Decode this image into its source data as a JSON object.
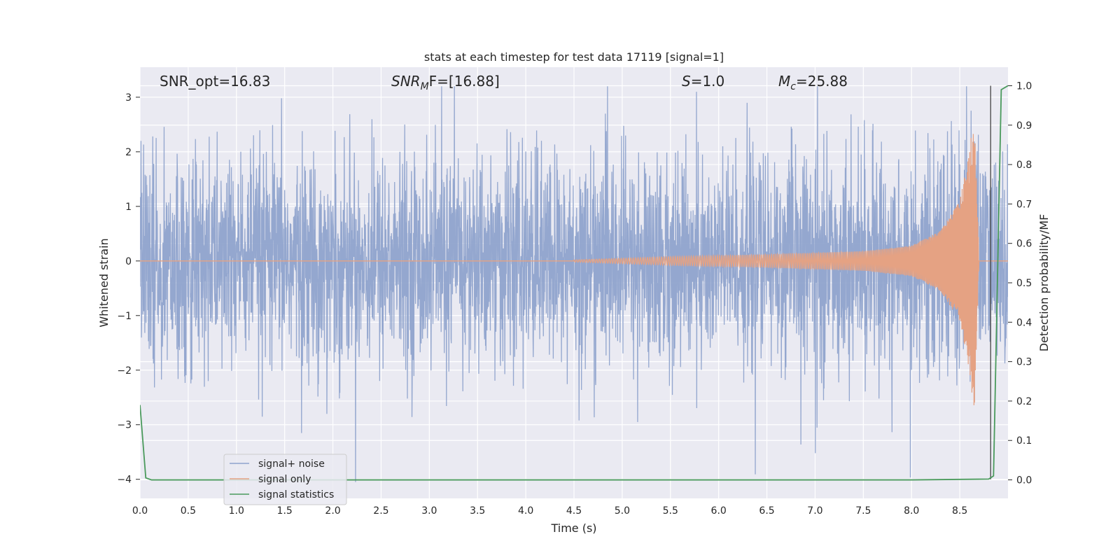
{
  "chart_data": {
    "type": "line",
    "title": "stats at each timestep for test data 17119 [signal=1]",
    "xlabel": "Time (s)",
    "ylabel": "Whitened strain",
    "ylabel_right": "Detection probability/MF",
    "xlim": [
      0.0,
      9.0
    ],
    "ylim": [
      -4.35,
      3.55
    ],
    "ylim_right": [
      -0.047,
      1.047
    ],
    "xticks": [
      "0.0",
      "0.5",
      "1.0",
      "1.5",
      "2.0",
      "2.5",
      "3.0",
      "3.5",
      "4.0",
      "4.5",
      "5.0",
      "5.5",
      "6.0",
      "6.5",
      "7.0",
      "7.5",
      "8.0",
      "8.5"
    ],
    "xtick_values": [
      0.0,
      0.5,
      1.0,
      1.5,
      2.0,
      2.5,
      3.0,
      3.5,
      4.0,
      4.5,
      5.0,
      5.5,
      6.0,
      6.5,
      7.0,
      7.5,
      8.0,
      8.5
    ],
    "yticks": [
      "−4",
      "−3",
      "−2",
      "−1",
      "0",
      "1",
      "2",
      "3"
    ],
    "ytick_values": [
      -4,
      -3,
      -2,
      -1,
      0,
      1,
      2,
      3
    ],
    "yticks_right": [
      "0.0",
      "0.1",
      "0.2",
      "0.3",
      "0.4",
      "0.5",
      "0.6",
      "0.7",
      "0.8",
      "0.9",
      "1.0"
    ],
    "ytick_values_right": [
      0.0,
      0.1,
      0.2,
      0.3,
      0.4,
      0.5,
      0.6,
      0.7,
      0.8,
      0.9,
      1.0
    ],
    "grid": true,
    "legend_placement": "lower-left",
    "annotations": {
      "snr_opt": "SNR_opt=16.83",
      "snr_mf_base": "SNR",
      "snr_mf_sub": "M",
      "snr_mf_rest": "F=[16.88]",
      "s_var": "S",
      "s_rest": "=1.0",
      "mc_base": "M",
      "mc_sub": "c",
      "mc_rest": "=25.88"
    },
    "marker_x": 8.82,
    "series": [
      {
        "name": "signal+ noise",
        "color": "#8fa3cc",
        "axis": "left",
        "noise_sigma": 1.0,
        "t_range": [
          0.0,
          9.0
        ]
      },
      {
        "name": "signal only",
        "color": "#e5a283",
        "axis": "left",
        "chirp_points": [
          [
            4.5,
            0.02
          ],
          [
            5.5,
            0.08
          ],
          [
            6.5,
            0.12
          ],
          [
            7.5,
            0.18
          ],
          [
            8.0,
            0.28
          ],
          [
            8.3,
            0.55
          ],
          [
            8.5,
            1.1
          ],
          [
            8.6,
            2.0
          ],
          [
            8.65,
            2.8
          ],
          [
            8.7,
            0.0
          ]
        ]
      },
      {
        "name": "signal statistics",
        "color": "#4a9a5c",
        "axis": "right",
        "x": [
          0.0,
          0.06,
          0.12,
          0.2,
          1.0,
          2.0,
          3.0,
          4.0,
          5.0,
          6.0,
          7.0,
          8.0,
          8.8,
          8.85,
          8.93,
          9.0
        ],
        "y": [
          0.19,
          0.005,
          0.0,
          0.0,
          0.0,
          0.0,
          0.0,
          0.0,
          0.0,
          0.0,
          0.0,
          0.0,
          0.002,
          0.01,
          0.99,
          1.0
        ]
      }
    ]
  }
}
